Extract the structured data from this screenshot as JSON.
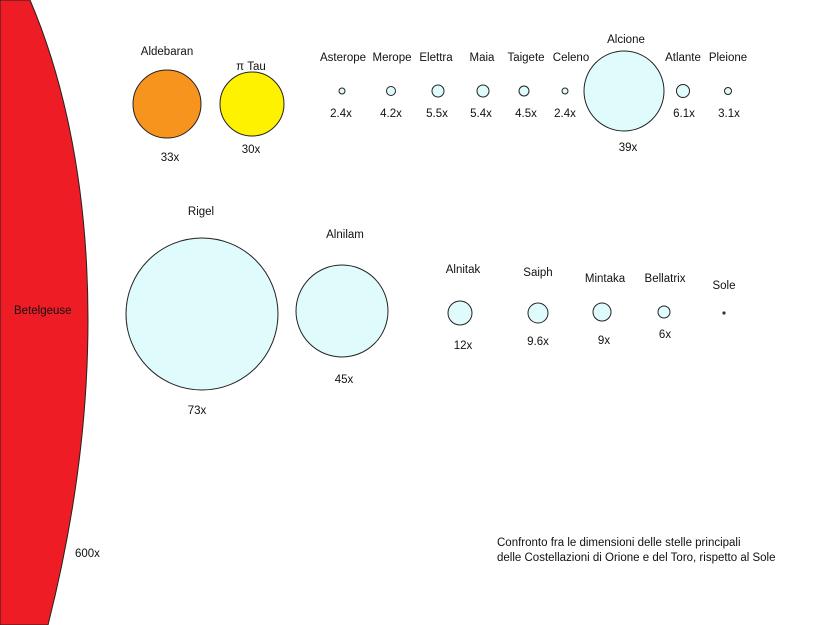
{
  "caption": {
    "line1": "Confronto fra le dimensioni delle stelle principali",
    "line2": "delle Costellazioni di Orione e del Toro, rispetto al Sole"
  },
  "colors": {
    "betelgeuse": "#ee1c25",
    "aldebaran": "#f7941d",
    "pi_tau": "#fff200",
    "blue_star": "#e0fbfc",
    "outline": "#222222"
  },
  "betelgeuse": {
    "name": "Betelgeuse",
    "ratio": "600x"
  },
  "stars": {
    "aldebaran": {
      "name": "Aldebaran",
      "ratio": "33x"
    },
    "pi_tau": {
      "name": "π Tau",
      "ratio": "30x"
    },
    "asterope": {
      "name": "Asterope",
      "ratio": "2.4x"
    },
    "merope": {
      "name": "Merope",
      "ratio": "4.2x"
    },
    "elettra": {
      "name": "Elettra",
      "ratio": "5.5x"
    },
    "maia": {
      "name": "Maia",
      "ratio": "5.4x"
    },
    "taigete": {
      "name": "Taigete",
      "ratio": "4.5x"
    },
    "celeno": {
      "name": "Celeno",
      "ratio": "2.4x"
    },
    "alcione": {
      "name": "Alcione",
      "ratio": "39x"
    },
    "atlante": {
      "name": "Atlante",
      "ratio": "6.1x"
    },
    "pleione": {
      "name": "Pleione",
      "ratio": "3.1x"
    },
    "rigel": {
      "name": "Rigel",
      "ratio": "73x"
    },
    "alnilam": {
      "name": "Alnilam",
      "ratio": "45x"
    },
    "alnitak": {
      "name": "Alnitak",
      "ratio": "12x"
    },
    "saiph": {
      "name": "Saiph",
      "ratio": "9.6x"
    },
    "mintaka": {
      "name": "Mintaka",
      "ratio": "9x"
    },
    "bellatrix": {
      "name": "Bellatrix",
      "ratio": "6x"
    },
    "sole": {
      "name": "Sole"
    }
  }
}
